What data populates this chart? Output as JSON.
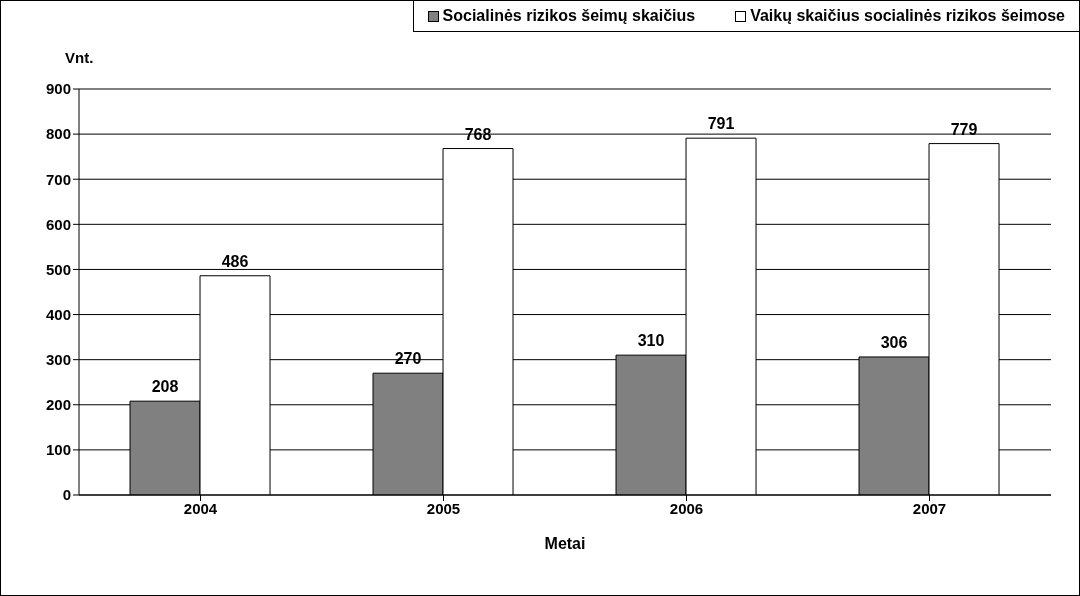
{
  "chart_data": {
    "type": "bar",
    "xlabel": "Metai",
    "ylabel": "Vnt.",
    "categories": [
      "2004",
      "2005",
      "2006",
      "2007"
    ],
    "series": [
      {
        "name": "Socialinės rizikos šeimų skaičius",
        "color": "#808080",
        "values": [
          208,
          270,
          310,
          306
        ]
      },
      {
        "name": "Vaikų skaičius socialinės rizikos šeimose",
        "color": "#ffffff",
        "values": [
          486,
          768,
          791,
          779
        ]
      }
    ],
    "ylim": [
      0,
      900
    ],
    "yticks": [
      0,
      100,
      200,
      300,
      400,
      500,
      600,
      700,
      800,
      900
    ],
    "grid": "y",
    "legend": "top right",
    "data_labels": true
  }
}
